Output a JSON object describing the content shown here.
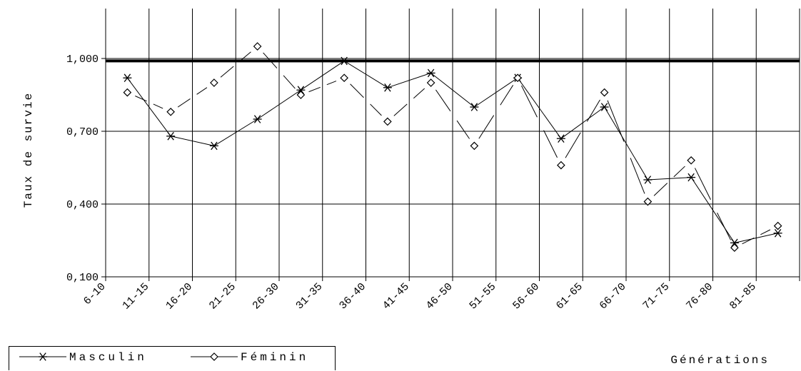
{
  "chart_data": {
    "type": "line",
    "xlabel": "Générations",
    "ylabel": "Taux de survie",
    "ylim": [
      0.1,
      1.0
    ],
    "yticks": [
      "0,100",
      "0,400",
      "0,700",
      "1,000"
    ],
    "categories": [
      "6-10",
      "11-15",
      "16-20",
      "21-25",
      "26-30",
      "31-35",
      "36-40",
      "41-45",
      "46-50",
      "51-55",
      "56-60",
      "61-65",
      "66-70",
      "71-75",
      "76-80",
      "81-85"
    ],
    "reference_line": 0.99,
    "grid": true,
    "legend_position": "bottom-left",
    "series": [
      {
        "name": "Masculin",
        "marker": "asterisk",
        "color": "#000000",
        "values": [
          0.92,
          0.68,
          0.64,
          0.75,
          0.87,
          0.99,
          0.88,
          0.94,
          0.8,
          0.92,
          0.67,
          0.8,
          0.5,
          0.51,
          0.24,
          0.28
        ]
      },
      {
        "name": "Féminin",
        "marker": "diamond",
        "color": "#000000",
        "values": [
          0.86,
          0.78,
          0.9,
          1.05,
          0.85,
          0.92,
          0.74,
          0.9,
          0.64,
          0.92,
          0.56,
          0.86,
          0.41,
          0.58,
          0.22,
          0.31
        ]
      }
    ]
  }
}
